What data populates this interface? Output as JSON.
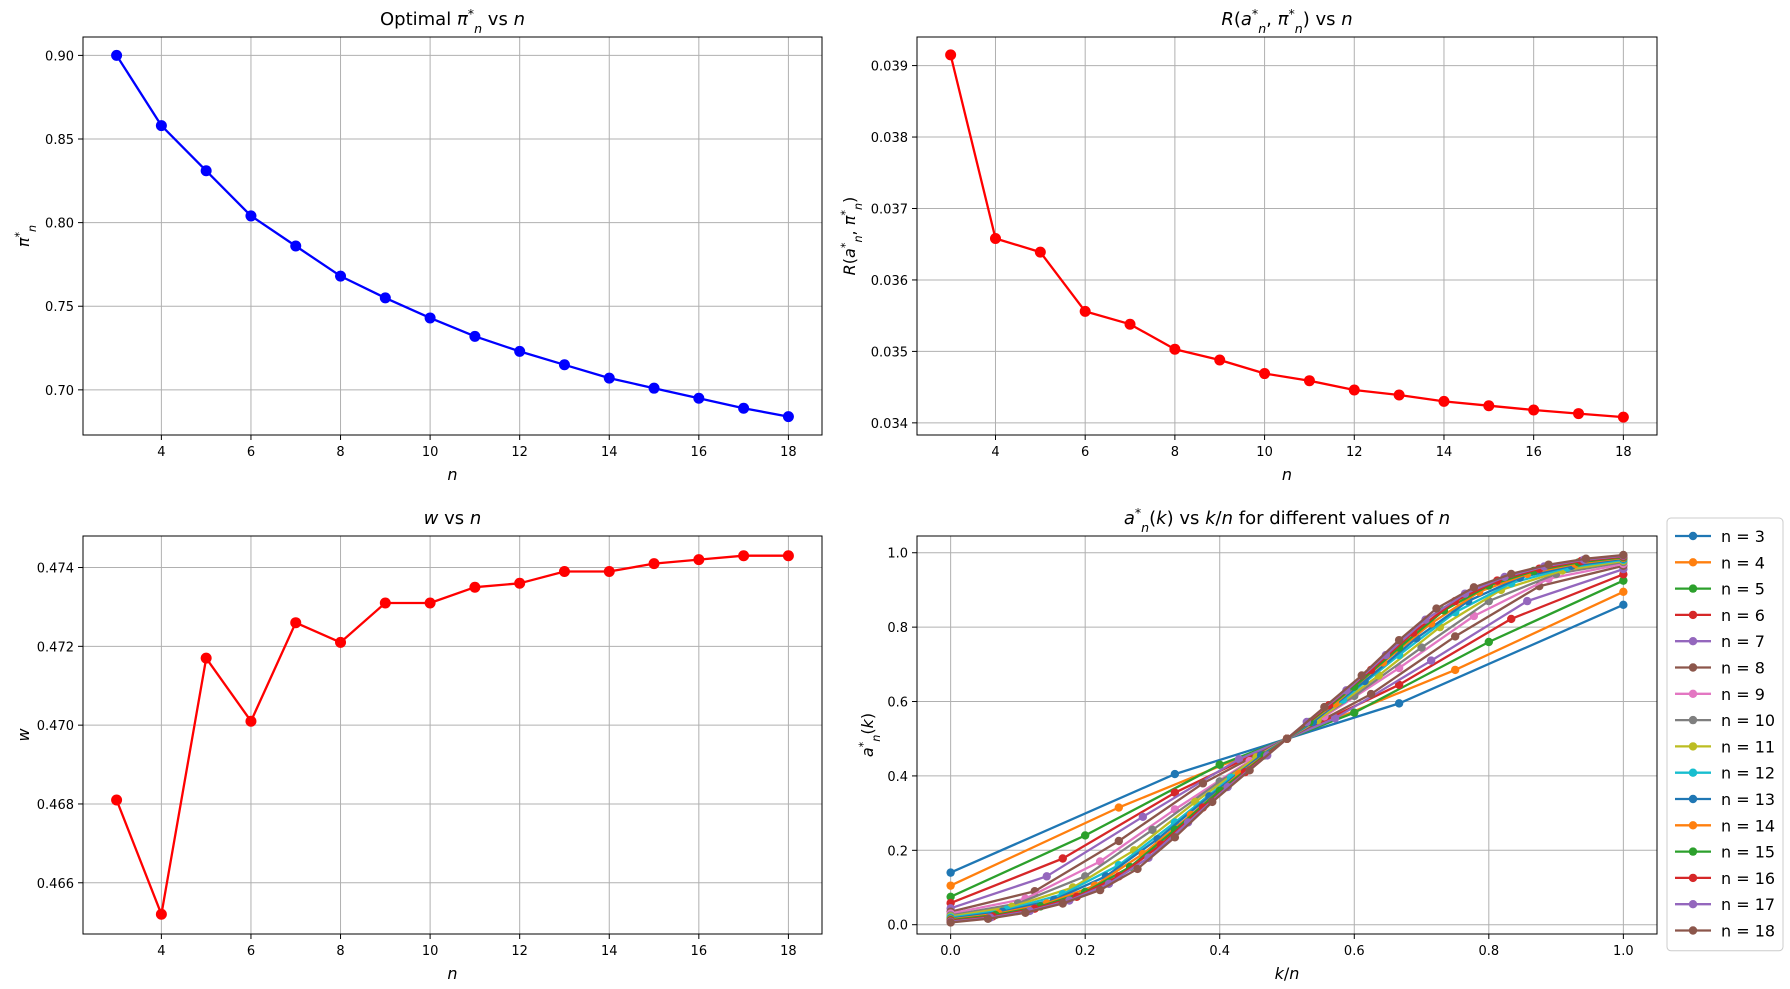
{
  "figure_layout": "2x2 grid",
  "chart_data": [
    {
      "id": "pi_vs_n",
      "type": "line",
      "title_parts": [
        {
          "t": "Optimal "
        },
        {
          "t": "π",
          "i": true
        },
        {
          "t": "*",
          "sup": true
        },
        {
          "t": "n",
          "sub": true,
          "i": true
        },
        {
          "t": " vs "
        },
        {
          "t": "n",
          "i": true
        }
      ],
      "xlabel_parts": [
        {
          "t": "n",
          "i": true
        }
      ],
      "ylabel_parts": [
        {
          "t": "π",
          "i": true
        },
        {
          "t": "*",
          "sup": true
        },
        {
          "t": "n",
          "sub": true,
          "i": true
        }
      ],
      "color": "#0000ff",
      "marker_size": 5.5,
      "x": [
        3,
        4,
        5,
        6,
        7,
        8,
        9,
        10,
        11,
        12,
        13,
        14,
        15,
        16,
        17,
        18
      ],
      "y": [
        0.9,
        0.858,
        0.831,
        0.804,
        0.786,
        0.768,
        0.755,
        0.743,
        0.732,
        0.723,
        0.715,
        0.707,
        0.701,
        0.695,
        0.689,
        0.684
      ],
      "xlim": [
        2.25,
        18.75
      ],
      "ylim": [
        0.673,
        0.911
      ],
      "xticks": [
        4,
        6,
        8,
        10,
        12,
        14,
        16,
        18
      ],
      "xticklabels": [
        "4",
        "6",
        "8",
        "10",
        "12",
        "14",
        "16",
        "18"
      ],
      "yticks": [
        0.7,
        0.75,
        0.8,
        0.85,
        0.9
      ],
      "yticklabels": [
        "0.70",
        "0.75",
        "0.80",
        "0.85",
        "0.90"
      ],
      "grid": true
    },
    {
      "id": "risk_vs_n",
      "type": "line",
      "title_parts": [
        {
          "t": "R",
          "i": true
        },
        {
          "t": "("
        },
        {
          "t": "a",
          "i": true
        },
        {
          "t": "*",
          "sup": true
        },
        {
          "t": "n",
          "sub": true,
          "i": true
        },
        {
          "t": ", "
        },
        {
          "t": "π",
          "i": true
        },
        {
          "t": "*",
          "sup": true
        },
        {
          "t": "n",
          "sub": true,
          "i": true
        },
        {
          "t": ") vs "
        },
        {
          "t": "n",
          "i": true
        }
      ],
      "xlabel_parts": [
        {
          "t": "n",
          "i": true
        }
      ],
      "ylabel_parts": [
        {
          "t": "R",
          "i": true
        },
        {
          "t": "("
        },
        {
          "t": "a",
          "i": true
        },
        {
          "t": "*",
          "sup": true
        },
        {
          "t": "n",
          "sub": true,
          "i": true
        },
        {
          "t": ", "
        },
        {
          "t": "π",
          "i": true
        },
        {
          "t": "*",
          "sup": true
        },
        {
          "t": "n",
          "sub": true,
          "i": true
        },
        {
          "t": ")"
        }
      ],
      "color": "#ff0000",
      "marker_size": 5.5,
      "x": [
        3,
        4,
        5,
        6,
        7,
        8,
        9,
        10,
        11,
        12,
        13,
        14,
        15,
        16,
        17,
        18
      ],
      "y": [
        0.03915,
        0.03658,
        0.03639,
        0.03556,
        0.03538,
        0.03503,
        0.03488,
        0.03469,
        0.03459,
        0.03446,
        0.03439,
        0.0343,
        0.03424,
        0.03418,
        0.03413,
        0.03408
      ],
      "xlim": [
        2.25,
        18.75
      ],
      "ylim": [
        0.03383,
        0.0394
      ],
      "xticks": [
        4,
        6,
        8,
        10,
        12,
        14,
        16,
        18
      ],
      "xticklabels": [
        "4",
        "6",
        "8",
        "10",
        "12",
        "14",
        "16",
        "18"
      ],
      "yticks": [
        0.034,
        0.035,
        0.036,
        0.037,
        0.038,
        0.039
      ],
      "yticklabels": [
        "0.034",
        "0.035",
        "0.036",
        "0.037",
        "0.038",
        "0.039"
      ],
      "grid": true
    },
    {
      "id": "w_vs_n",
      "type": "line",
      "title_parts": [
        {
          "t": "w",
          "i": true
        },
        {
          "t": " vs "
        },
        {
          "t": "n",
          "i": true
        }
      ],
      "xlabel_parts": [
        {
          "t": "n",
          "i": true
        }
      ],
      "ylabel_parts": [
        {
          "t": "w",
          "i": true
        }
      ],
      "color": "#ff0000",
      "marker_size": 5.5,
      "x": [
        3,
        4,
        5,
        6,
        7,
        8,
        9,
        10,
        11,
        12,
        13,
        14,
        15,
        16,
        17,
        18
      ],
      "y": [
        0.4681,
        0.4652,
        0.4717,
        0.4701,
        0.4726,
        0.4721,
        0.4731,
        0.4731,
        0.4735,
        0.4736,
        0.4739,
        0.4739,
        0.4741,
        0.4742,
        0.4743,
        0.4743
      ],
      "xlim": [
        2.25,
        18.75
      ],
      "ylim": [
        0.4647,
        0.4748
      ],
      "xticks": [
        4,
        6,
        8,
        10,
        12,
        14,
        16,
        18
      ],
      "xticklabels": [
        "4",
        "6",
        "8",
        "10",
        "12",
        "14",
        "16",
        "18"
      ],
      "yticks": [
        0.466,
        0.468,
        0.47,
        0.472,
        0.474
      ],
      "yticklabels": [
        "0.466",
        "0.468",
        "0.470",
        "0.472",
        "0.474"
      ],
      "grid": true
    },
    {
      "id": "a_vs_kn",
      "type": "line",
      "title_parts": [
        {
          "t": "a",
          "i": true
        },
        {
          "t": "*",
          "sup": true
        },
        {
          "t": "n",
          "sub": true,
          "i": true
        },
        {
          "t": "("
        },
        {
          "t": "k",
          "i": true
        },
        {
          "t": ") vs "
        },
        {
          "t": "k",
          "i": true
        },
        {
          "t": "/"
        },
        {
          "t": "n",
          "i": true
        },
        {
          "t": " for different values of "
        },
        {
          "t": "n",
          "i": true
        }
      ],
      "xlabel_parts": [
        {
          "t": "k",
          "i": true
        },
        {
          "t": "/"
        },
        {
          "t": "n",
          "i": true
        }
      ],
      "ylabel_parts": [
        {
          "t": "a",
          "i": true
        },
        {
          "t": "*",
          "sup": true
        },
        {
          "t": "n",
          "sub": true,
          "i": true
        },
        {
          "t": "("
        },
        {
          "t": "k",
          "i": true
        },
        {
          "t": ")"
        }
      ],
      "marker_size": 4.2,
      "xlim": [
        -0.05,
        1.05
      ],
      "ylim": [
        -0.025,
        1.045
      ],
      "xticks": [
        0.0,
        0.2,
        0.4,
        0.6,
        0.8,
        1.0
      ],
      "xticklabels": [
        "0.0",
        "0.2",
        "0.4",
        "0.6",
        "0.8",
        "1.0"
      ],
      "yticks": [
        0.0,
        0.2,
        0.4,
        0.6,
        0.8,
        1.0
      ],
      "yticklabels": [
        "0.0",
        "0.2",
        "0.4",
        "0.6",
        "0.8",
        "1.0"
      ],
      "grid": true,
      "legend_position": "outside-right",
      "series": [
        {
          "name": "n = 3",
          "color": "#1f77b4",
          "y": [
            0.14,
            0.405,
            0.595,
            0.86
          ]
        },
        {
          "name": "n = 4",
          "color": "#ff7f0e",
          "y": [
            0.105,
            0.315,
            0.5,
            0.685,
            0.895
          ]
        },
        {
          "name": "n = 5",
          "color": "#2ca02c",
          "y": [
            0.075,
            0.24,
            0.43,
            0.57,
            0.76,
            0.925
          ]
        },
        {
          "name": "n = 6",
          "color": "#d62728",
          "y": [
            0.058,
            0.178,
            0.355,
            0.5,
            0.645,
            0.822,
            0.942
          ]
        },
        {
          "name": "n = 7",
          "color": "#9467bd",
          "y": [
            0.044,
            0.13,
            0.29,
            0.445,
            0.555,
            0.71,
            0.87,
            0.956
          ]
        },
        {
          "name": "n = 8",
          "color": "#8c564b",
          "y": [
            0.035,
            0.09,
            0.225,
            0.38,
            0.5,
            0.62,
            0.775,
            0.91,
            0.965
          ]
        },
        {
          "name": "n = 9",
          "color": "#e377c2",
          "y": [
            0.03,
            0.07,
            0.17,
            0.31,
            0.44,
            0.56,
            0.69,
            0.83,
            0.93,
            0.97
          ]
        },
        {
          "name": "n = 10",
          "color": "#7f7f7f",
          "y": [
            0.025,
            0.057,
            0.13,
            0.255,
            0.385,
            0.5,
            0.615,
            0.745,
            0.87,
            0.943,
            0.975
          ]
        },
        {
          "name": "n = 11",
          "color": "#bcbd22",
          "y": [
            0.022,
            0.048,
            0.1,
            0.2,
            0.33,
            0.45,
            0.55,
            0.67,
            0.8,
            0.9,
            0.952,
            0.978
          ]
        },
        {
          "name": "n = 12",
          "color": "#17becf",
          "y": [
            0.019,
            0.04,
            0.082,
            0.16,
            0.275,
            0.395,
            0.5,
            0.605,
            0.725,
            0.84,
            0.918,
            0.96,
            0.981
          ]
        },
        {
          "name": "n = 13",
          "color": "#1f77b4",
          "y": [
            0.016,
            0.035,
            0.067,
            0.13,
            0.23,
            0.345,
            0.455,
            0.545,
            0.655,
            0.77,
            0.87,
            0.933,
            0.965,
            0.984
          ]
        },
        {
          "name": "n = 14",
          "color": "#ff7f0e",
          "y": [
            0.014,
            0.03,
            0.057,
            0.105,
            0.19,
            0.295,
            0.405,
            0.5,
            0.595,
            0.705,
            0.81,
            0.895,
            0.943,
            0.97,
            0.986
          ]
        },
        {
          "name": "n = 15",
          "color": "#2ca02c",
          "y": [
            0.012,
            0.026,
            0.049,
            0.088,
            0.155,
            0.255,
            0.36,
            0.455,
            0.545,
            0.64,
            0.745,
            0.845,
            0.912,
            0.951,
            0.974,
            0.988
          ]
        },
        {
          "name": "n = 16",
          "color": "#d62728",
          "y": [
            0.01,
            0.022,
            0.043,
            0.075,
            0.13,
            0.215,
            0.315,
            0.41,
            0.5,
            0.59,
            0.685,
            0.785,
            0.87,
            0.925,
            0.957,
            0.978,
            0.99
          ]
        },
        {
          "name": "n = 17",
          "color": "#9467bd",
          "y": [
            0.008,
            0.019,
            0.037,
            0.065,
            0.11,
            0.18,
            0.275,
            0.37,
            0.455,
            0.545,
            0.63,
            0.725,
            0.82,
            0.89,
            0.935,
            0.963,
            0.981,
            0.992
          ]
        },
        {
          "name": "n = 18",
          "color": "#8c564b",
          "y": [
            0.006,
            0.016,
            0.032,
            0.057,
            0.093,
            0.15,
            0.235,
            0.33,
            0.415,
            0.5,
            0.585,
            0.67,
            0.765,
            0.85,
            0.907,
            0.943,
            0.968,
            0.984,
            0.994
          ]
        }
      ]
    }
  ]
}
